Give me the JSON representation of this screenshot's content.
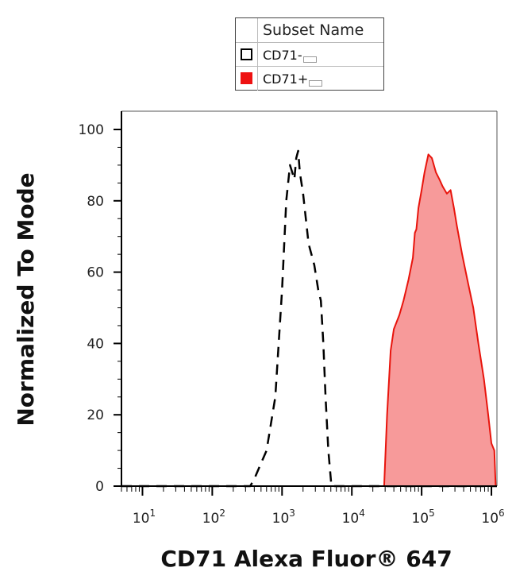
{
  "legend": {
    "header": "Subset Name",
    "items": [
      {
        "label": "CD71-",
        "swatch_fill": "#ffffff",
        "swatch_border": "#000000"
      },
      {
        "label": "CD71+",
        "swatch_fill": "#ee1111",
        "swatch_border": "#ee1111"
      }
    ]
  },
  "chart_data": {
    "type": "area",
    "xlabel": "CD71 Alexa Fluor® 647",
    "ylabel": "Normalized To Mode",
    "x_scale": "log",
    "xlim": [
      5,
      1200000
    ],
    "ylim": [
      0,
      105
    ],
    "y_ticks": [
      0,
      20,
      40,
      60,
      80,
      100
    ],
    "x_ticks": [
      {
        "value": 10,
        "base": "10",
        "exp": "1"
      },
      {
        "value": 100,
        "base": "10",
        "exp": "2"
      },
      {
        "value": 1000,
        "base": "10",
        "exp": "3"
      },
      {
        "value": 10000,
        "base": "10",
        "exp": "4"
      },
      {
        "value": 100000,
        "base": "10",
        "exp": "5"
      },
      {
        "value": 1000000,
        "base": "10",
        "exp": "6"
      }
    ],
    "grid": false,
    "series": [
      {
        "name": "CD71-",
        "style": "dashed",
        "color": "#000000",
        "fill": "none",
        "points": [
          [
            5,
            0
          ],
          [
            350,
            0
          ],
          [
            400,
            2
          ],
          [
            600,
            10
          ],
          [
            800,
            25
          ],
          [
            1000,
            55
          ],
          [
            1150,
            80
          ],
          [
            1300,
            90
          ],
          [
            1400,
            88
          ],
          [
            1500,
            86
          ],
          [
            1600,
            92
          ],
          [
            1700,
            94
          ],
          [
            1800,
            88
          ],
          [
            2000,
            82
          ],
          [
            2400,
            68
          ],
          [
            2900,
            62
          ],
          [
            3300,
            55
          ],
          [
            3600,
            52
          ],
          [
            3900,
            40
          ],
          [
            4200,
            25
          ],
          [
            4600,
            10
          ],
          [
            5100,
            0
          ],
          [
            1200000,
            0
          ]
        ]
      },
      {
        "name": "CD71+",
        "style": "solid",
        "color": "#e8140c",
        "fill": "#f79a9a",
        "points": [
          [
            5,
            0
          ],
          [
            29000,
            0
          ],
          [
            32000,
            20
          ],
          [
            36000,
            38
          ],
          [
            40000,
            44
          ],
          [
            48000,
            48
          ],
          [
            55000,
            52
          ],
          [
            65000,
            58
          ],
          [
            75000,
            64
          ],
          [
            80000,
            71
          ],
          [
            84000,
            72
          ],
          [
            90000,
            78
          ],
          [
            100000,
            83
          ],
          [
            110000,
            88
          ],
          [
            125000,
            93
          ],
          [
            140000,
            92
          ],
          [
            160000,
            88
          ],
          [
            180000,
            86
          ],
          [
            200000,
            84
          ],
          [
            230000,
            82
          ],
          [
            260000,
            83
          ],
          [
            290000,
            78
          ],
          [
            320000,
            73
          ],
          [
            380000,
            65
          ],
          [
            450000,
            58
          ],
          [
            550000,
            50
          ],
          [
            650000,
            40
          ],
          [
            780000,
            30
          ],
          [
            900000,
            20
          ],
          [
            1000000,
            12
          ],
          [
            1100000,
            10
          ],
          [
            1150000,
            0
          ],
          [
            1200000,
            0
          ]
        ]
      }
    ]
  }
}
